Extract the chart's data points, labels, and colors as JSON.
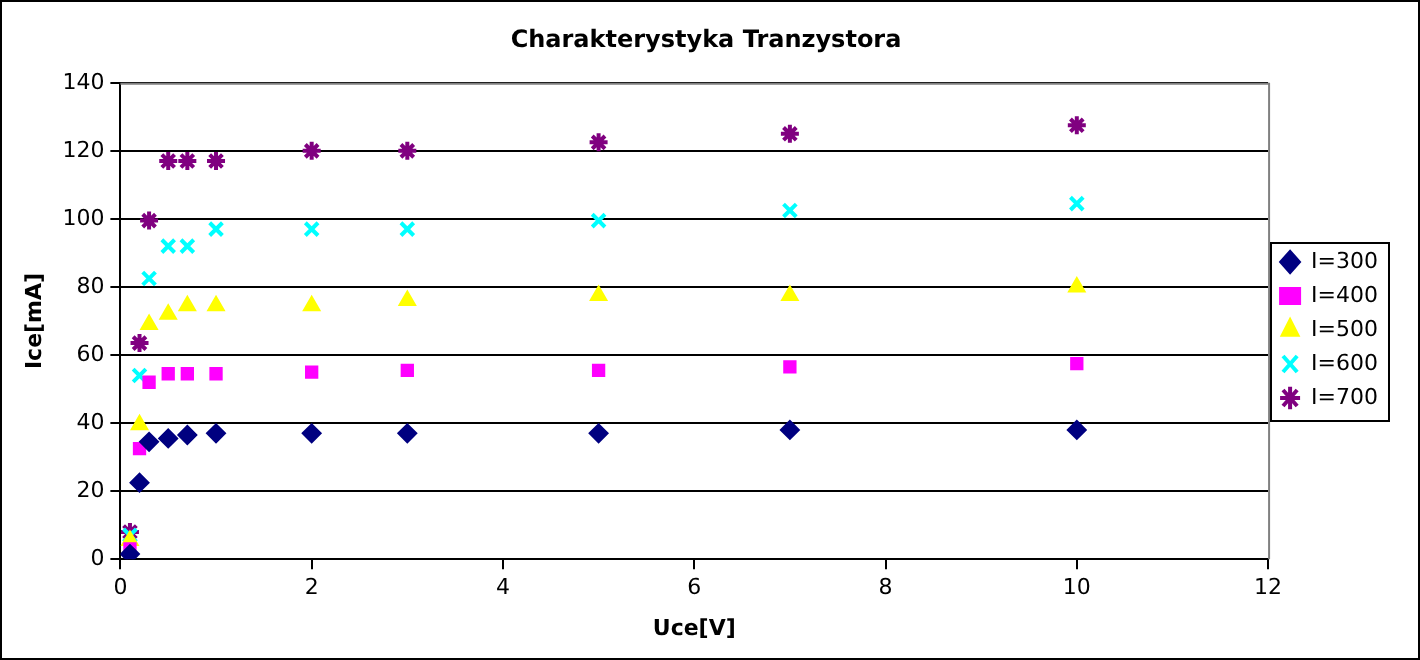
{
  "chart_data": {
    "type": "scatter",
    "title": "Charakterystyka Tranzystora",
    "xlabel": "Uce[V]",
    "ylabel": "Ice[mA]",
    "x": [
      0.1,
      0.2,
      0.3,
      0.5,
      0.7,
      1,
      2,
      3,
      5,
      7,
      10
    ],
    "series": [
      {
        "name": "I=300",
        "color": "#000080",
        "marker": "diamond",
        "values": [
          1.5,
          22.5,
          34.5,
          35.5,
          36.5,
          37,
          37,
          37,
          37,
          38,
          38
        ]
      },
      {
        "name": "I=400",
        "color": "#ff00ff",
        "marker": "square",
        "values": [
          3,
          32.5,
          52,
          54.5,
          54.5,
          54.5,
          55,
          55.5,
          55.5,
          56.5,
          57.5
        ]
      },
      {
        "name": "I=500",
        "color": "#ffff00",
        "marker": "triangle",
        "values": [
          5.5,
          39.5,
          69,
          72,
          74.5,
          74.5,
          74.5,
          76,
          77.5,
          77.5,
          80
        ]
      },
      {
        "name": "I=600",
        "color": "#00ffff",
        "marker": "cross",
        "values": [
          7,
          54,
          82.5,
          92,
          92,
          97,
          97,
          97,
          99.5,
          102.5,
          104.5
        ]
      },
      {
        "name": "I=700",
        "color": "#800080",
        "values": [
          8,
          63.5,
          99.5,
          117,
          117,
          117,
          120,
          120,
          122.5,
          125,
          127.5
        ]
      }
    ],
    "xlim": [
      0,
      12
    ],
    "xticks": [
      0,
      2,
      4,
      6,
      8,
      10,
      12
    ],
    "ylim": [
      0,
      140
    ],
    "yticks": [
      0,
      20,
      40,
      60,
      80,
      100,
      120,
      140
    ],
    "grid": "y",
    "legend": "right"
  }
}
